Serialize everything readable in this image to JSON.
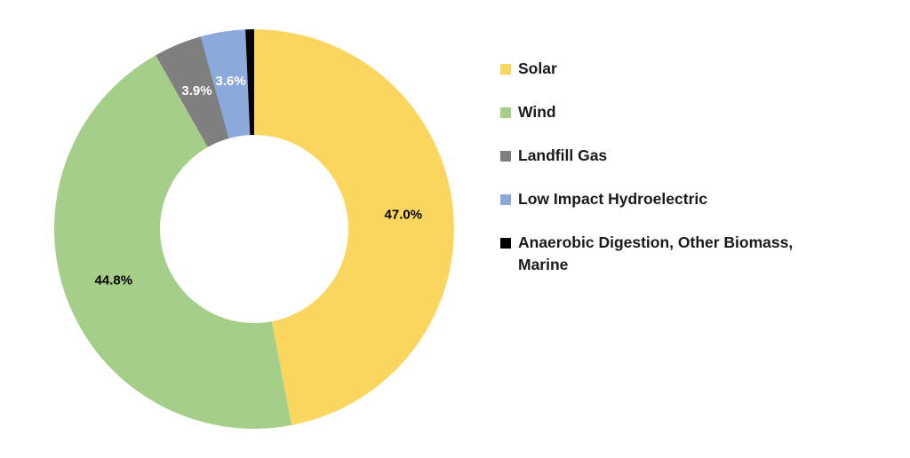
{
  "chart_data": {
    "type": "pie",
    "subtype": "donut",
    "title": "",
    "background_color": "#ffffff",
    "start_angle_deg": 0,
    "direction": "clockwise",
    "donut_hole_ratio": 0.47,
    "legend_position": "right",
    "categories": [
      "Solar",
      "Wind",
      "Landfill Gas",
      "Low Impact Hydroelectric",
      "Anaerobic Digestion, Other Biomass, Marine"
    ],
    "values": [
      47.0,
      44.8,
      3.9,
      3.6,
      0.7
    ],
    "slices": [
      {
        "id": "solar",
        "label": "Solar",
        "value": 47.0,
        "display_value": "47.0%",
        "display_value_color": "#000000",
        "color": "#FBD65E",
        "legend_lines": [
          "Solar"
        ]
      },
      {
        "id": "wind",
        "label": "Wind",
        "value": 44.8,
        "display_value": "44.8%",
        "display_value_color": "#000000",
        "color": "#A5CF88",
        "legend_lines": [
          "Wind"
        ]
      },
      {
        "id": "landfill-gas",
        "label": "Landfill Gas",
        "value": 3.9,
        "display_value": "3.9%",
        "display_value_color": "#FFFFFF",
        "color": "#7F7F7F",
        "legend_lines": [
          "Landfill Gas"
        ]
      },
      {
        "id": "low-impact-hydroelectric",
        "label": "Low Impact Hydroelectric",
        "value": 3.6,
        "display_value": "3.6%",
        "display_value_color": "#FFFFFF",
        "color": "#8CA9DC",
        "legend_lines": [
          "Low Impact Hydroelectric"
        ]
      },
      {
        "id": "anaerobic-digestion-other-biomass-marine",
        "label": "Anaerobic Digestion, Other Biomass, Marine",
        "value": 0.7,
        "display_value": "",
        "display_value_color": "",
        "color": "#000000",
        "legend_lines": [
          "Anaerobic Digestion, Other Biomass,",
          "Marine"
        ]
      }
    ]
  }
}
